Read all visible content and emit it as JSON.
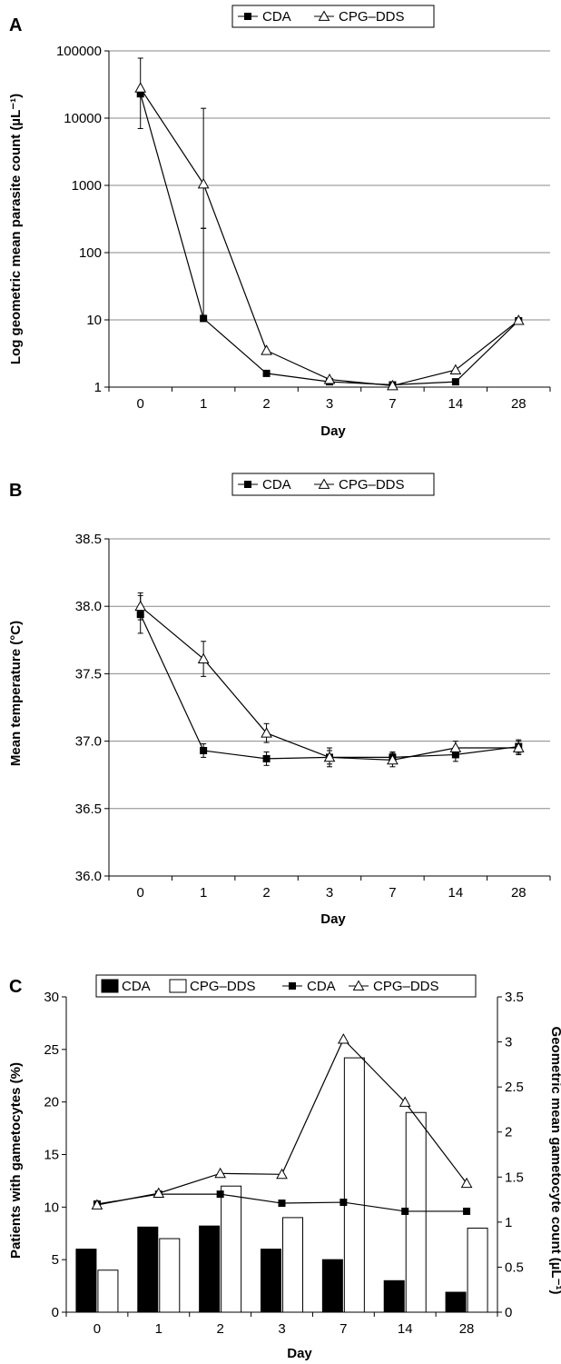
{
  "chart_data": [
    {
      "panel": "A",
      "type": "line",
      "categories": [
        "0",
        "1",
        "2",
        "3",
        "7",
        "14",
        "28"
      ],
      "ylabel": "Log geometric mean parasite count (µL⁻¹)",
      "xlabel": "Day",
      "yscale": "log",
      "ylim": [
        1,
        100000
      ],
      "yticks": [
        "1",
        "10",
        "100",
        "1000",
        "10000",
        "100000"
      ],
      "grid": true,
      "legend": "top-center",
      "series": [
        {
          "name": "CDA",
          "marker": "filled-square",
          "values": [
            23000,
            10.5,
            1.6,
            1.2,
            1.08,
            1.2,
            9.7
          ],
          "err_up": [
            null,
            230,
            null,
            null,
            null,
            null,
            null
          ],
          "err_low": [
            7000,
            null,
            null,
            null,
            null,
            null,
            null
          ]
        },
        {
          "name": "CPG–DDS",
          "marker": "open-triangle",
          "values": [
            28000,
            1050,
            3.5,
            1.3,
            1.05,
            1.8,
            9.8
          ],
          "err_up": [
            78000,
            14000,
            null,
            null,
            null,
            null,
            null
          ],
          "err_low": [
            null,
            230,
            null,
            null,
            null,
            null,
            null
          ]
        }
      ]
    },
    {
      "panel": "B",
      "type": "line",
      "categories": [
        "0",
        "1",
        "2",
        "3",
        "7",
        "14",
        "28"
      ],
      "ylabel": "Mean temperature (°C)",
      "xlabel": "Day",
      "ylim": [
        36.0,
        38.5
      ],
      "yticks": [
        "36.0",
        "36.5",
        "37.0",
        "37.5",
        "38.0",
        "38.5"
      ],
      "grid": true,
      "legend": "top-center",
      "series": [
        {
          "name": "CDA",
          "marker": "filled-square",
          "values": [
            37.94,
            36.93,
            36.87,
            36.88,
            36.88,
            36.9,
            36.96
          ],
          "err": [
            0.14,
            0.05,
            0.05,
            0.05,
            0.04,
            0.05,
            0.05
          ]
        },
        {
          "name": "CPG–DDS",
          "marker": "open-triangle",
          "values": [
            38.0,
            37.61,
            37.06,
            36.88,
            36.86,
            36.95,
            36.95
          ],
          "err": [
            0.1,
            0.13,
            0.07,
            0.07,
            0.05,
            0.05,
            0.05
          ]
        }
      ]
    },
    {
      "panel": "C",
      "type": "bar",
      "categories": [
        "0",
        "1",
        "2",
        "3",
        "7",
        "14",
        "28"
      ],
      "xlabel": "Day",
      "ylabel": "Patients with gametocytes (%)",
      "ylim": [
        0,
        30
      ],
      "yticks": [
        "0",
        "5",
        "10",
        "15",
        "20",
        "25",
        "30"
      ],
      "y2label": "Geometric mean gametocyte count (µL⁻¹)",
      "y2lim": [
        0,
        3.5
      ],
      "y2ticks": [
        "0",
        "0.5",
        "1",
        "1.5",
        "2",
        "2.5",
        "3",
        "3.5"
      ],
      "legend": "top-center",
      "bar_series": [
        {
          "name": "CDA",
          "style": "filled",
          "values": [
            6,
            8.1,
            8.2,
            6,
            5,
            3,
            1.9
          ]
        },
        {
          "name": "CPG–DDS",
          "style": "open",
          "values": [
            4,
            7,
            12,
            9,
            24.2,
            19,
            8
          ]
        }
      ],
      "line_series": [
        {
          "name": "CDA",
          "marker": "filled-square",
          "axis": "right",
          "values": [
            1.2,
            1.31,
            1.31,
            1.21,
            1.22,
            1.12,
            1.12
          ]
        },
        {
          "name": "CPG–DDS",
          "marker": "open-triangle",
          "axis": "right",
          "values": [
            1.19,
            1.32,
            1.54,
            1.53,
            3.03,
            2.33,
            1.43
          ]
        }
      ]
    }
  ]
}
